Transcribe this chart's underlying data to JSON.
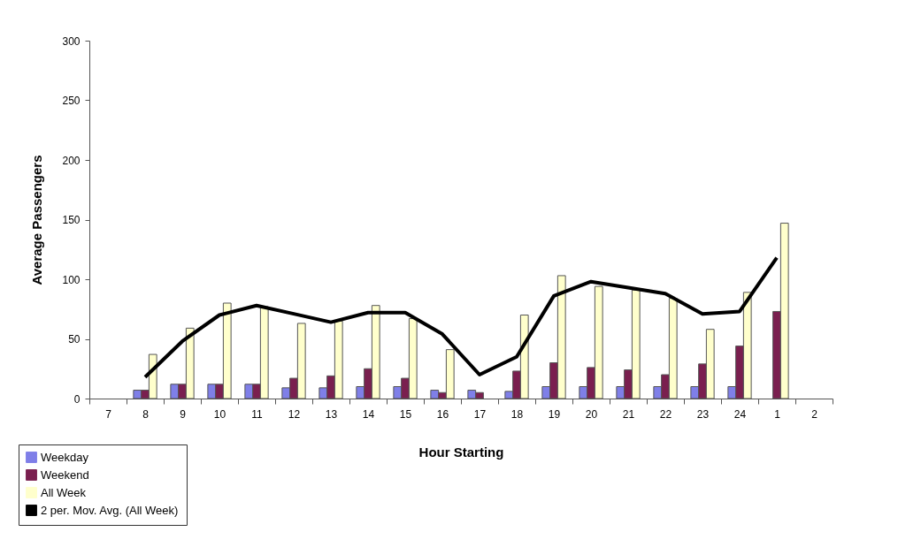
{
  "chart_data": {
    "type": "bar",
    "xlabel": "Hour Starting",
    "ylabel": "Average Passengers",
    "categories": [
      "7",
      "8",
      "9",
      "10",
      "11",
      "12",
      "13",
      "14",
      "15",
      "16",
      "17",
      "18",
      "19",
      "20",
      "21",
      "22",
      "23",
      "24",
      "1",
      "2"
    ],
    "series": [
      {
        "name": "Weekday",
        "color": "#7f7fe8",
        "values": [
          null,
          7,
          12,
          12,
          12,
          9,
          9,
          10,
          10,
          7,
          7,
          6,
          10,
          10,
          10,
          10,
          10,
          10,
          null,
          null
        ]
      },
      {
        "name": "Weekend",
        "color": "#7a1f4f",
        "values": [
          null,
          7,
          12,
          12,
          12,
          17,
          19,
          25,
          17,
          5,
          5,
          23,
          30,
          26,
          24,
          20,
          29,
          44,
          73,
          null
        ]
      },
      {
        "name": "All Week",
        "color": "#ffffcc",
        "values": [
          null,
          37,
          59,
          80,
          77,
          63,
          65,
          78,
          67,
          41,
          null,
          70,
          103,
          94,
          91,
          84,
          58,
          89,
          147,
          null
        ]
      },
      {
        "name": "2 per. Mov. Avg. (All Week)",
        "type": "line",
        "color": "#000000",
        "values": [
          null,
          18,
          48,
          70,
          78,
          71,
          64,
          72,
          72,
          54,
          20,
          35,
          86,
          98,
          93,
          88,
          71,
          73,
          118,
          null
        ]
      }
    ],
    "ylim": [
      0,
      300
    ],
    "yticks": [
      0,
      50,
      100,
      150,
      200,
      250,
      300
    ],
    "grid": false,
    "legend": "bottom left"
  }
}
